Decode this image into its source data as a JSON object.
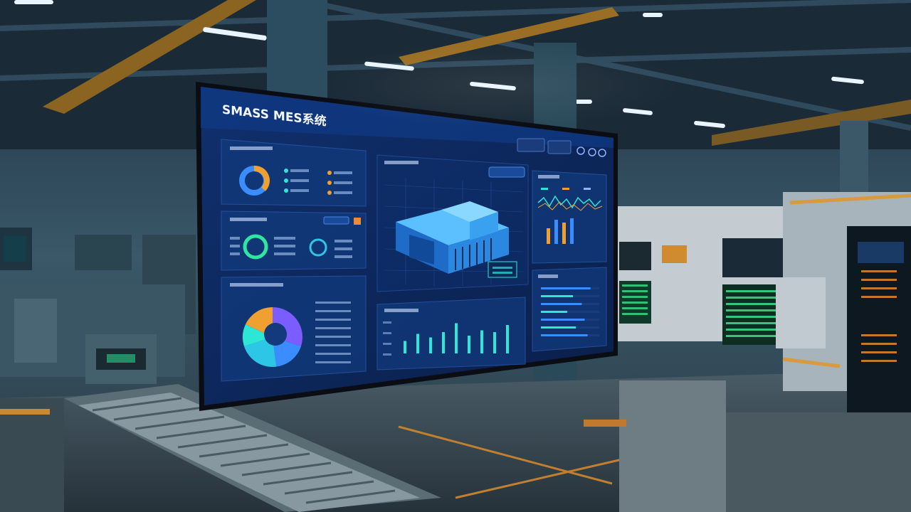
{
  "screen": {
    "title": "SMASS MES系统",
    "buttons": [
      {
        "label": ""
      },
      {
        "label": ""
      }
    ],
    "panels": {
      "status_donut": {
        "title": ""
      },
      "rings": {
        "title": ""
      },
      "pie": {
        "title": ""
      },
      "model_view": {
        "title": ""
      },
      "bar_chart": {
        "title": ""
      },
      "line_chart": {
        "title": ""
      },
      "progress": {
        "title": ""
      }
    },
    "progress_levels": [
      0.85,
      0.55,
      0.7,
      0.45,
      0.75,
      0.6,
      0.8
    ],
    "bar_levels": [
      0.35,
      0.55,
      0.45,
      0.6,
      0.85,
      0.5,
      0.65,
      0.6,
      0.8
    ],
    "small_bars": [
      0.55,
      0.85,
      0.75,
      0.9
    ],
    "pie_segments": [
      0.3,
      0.18,
      0.22,
      0.12,
      0.18
    ]
  },
  "colors": {
    "screen_bg": "#0d2a5c",
    "panel_bg": "#112f6b",
    "accent_cyan": "#2ee6d6",
    "accent_orange": "#f0a030",
    "accent_blue": "#3a8cff",
    "accent_purple": "#7a5cff"
  }
}
